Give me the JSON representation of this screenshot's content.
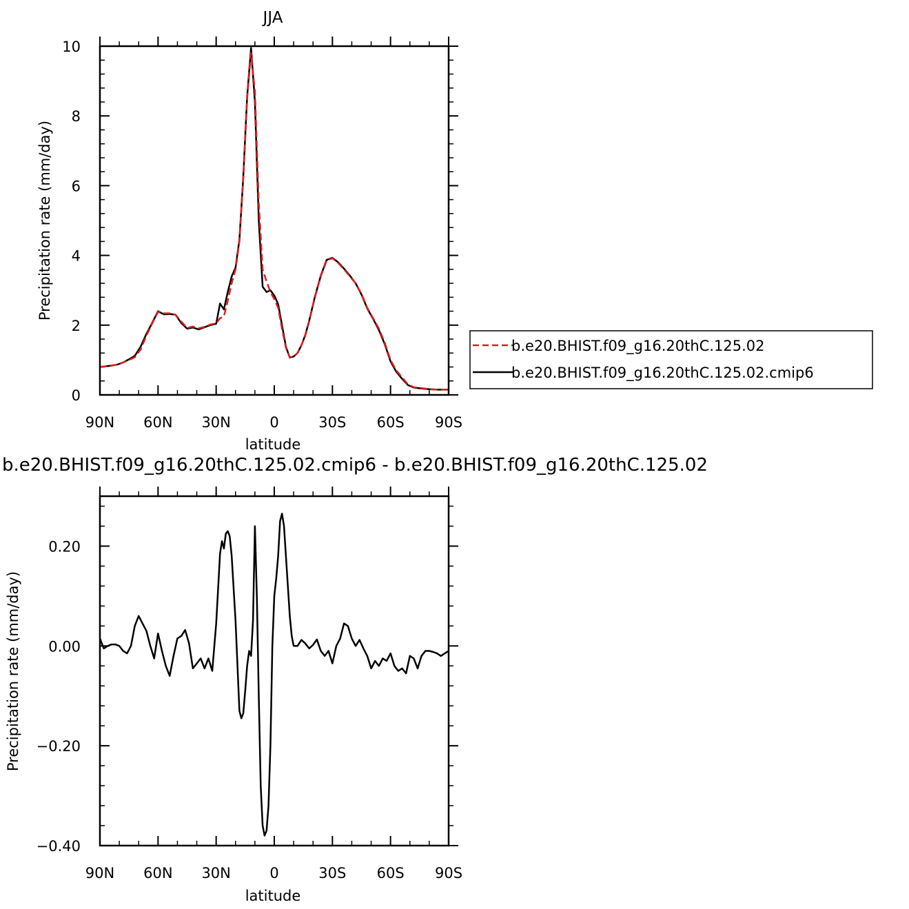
{
  "chart_data": [
    {
      "type": "line",
      "title": "JJA",
      "xlabel": "latitude",
      "ylabel": "Precipitation rate (mm/day)",
      "xlim": [
        90,
        -90
      ],
      "ylim": [
        0,
        10
      ],
      "xticks": [
        90,
        60,
        30,
        0,
        -30,
        -60,
        -90
      ],
      "xtick_labels": [
        "90N",
        "60N",
        "30N",
        "0",
        "30S",
        "60S",
        "90S"
      ],
      "yticks": [
        0,
        2,
        4,
        6,
        8,
        10
      ],
      "ytick_labels": [
        "0",
        "2",
        "4",
        "6",
        "8",
        "10"
      ],
      "legend_position": "right",
      "series": [
        {
          "name": "b.e20.BHIST.f09_g16.20thC.125.02",
          "color": "#e41a1c",
          "dash": "dashed",
          "x": [
            90,
            87,
            84,
            81,
            78,
            75,
            72,
            69,
            66,
            63,
            60,
            57,
            54,
            51,
            48,
            45,
            42,
            39,
            36,
            33,
            30,
            28,
            26,
            24,
            22,
            20,
            18,
            16,
            14,
            12,
            10,
            8,
            6,
            4,
            2,
            0,
            -2,
            -4,
            -6,
            -8,
            -10,
            -12,
            -14,
            -16,
            -18,
            -21,
            -24,
            -27,
            -30,
            -33,
            -36,
            -39,
            -42,
            -45,
            -48,
            -51,
            -54,
            -57,
            -60,
            -63,
            -66,
            -69,
            -72,
            -75,
            -78,
            -81,
            -84,
            -87,
            -90
          ],
          "y": [
            0.8,
            0.82,
            0.84,
            0.87,
            0.93,
            1.0,
            1.08,
            1.3,
            1.7,
            2.05,
            2.38,
            2.34,
            2.34,
            2.3,
            2.1,
            1.92,
            1.96,
            1.91,
            1.95,
            2.02,
            2.05,
            2.2,
            2.25,
            2.7,
            3.2,
            3.6,
            4.4,
            6.2,
            8.5,
            9.8,
            8.7,
            5.5,
            3.6,
            3.25,
            2.95,
            2.75,
            2.5,
            1.9,
            1.35,
            1.08,
            1.1,
            1.2,
            1.42,
            1.7,
            2.1,
            2.8,
            3.4,
            3.85,
            3.92,
            3.78,
            3.6,
            3.4,
            3.2,
            2.9,
            2.5,
            2.2,
            1.9,
            1.5,
            1.0,
            0.7,
            0.5,
            0.3,
            0.22,
            0.2,
            0.18,
            0.16,
            0.15,
            0.15,
            0.15
          ]
        },
        {
          "name": "b.e20.BHIST.f09_g16.20thC.125.02.cmip6",
          "color": "#000000",
          "dash": "solid",
          "x": [
            90,
            87,
            84,
            81,
            78,
            75,
            72,
            69,
            66,
            63,
            60,
            57,
            54,
            51,
            48,
            45,
            42,
            39,
            36,
            33,
            30,
            28,
            26,
            24,
            22,
            20,
            18,
            16,
            14,
            12,
            10,
            8,
            6,
            4,
            2,
            0,
            -2,
            -4,
            -6,
            -8,
            -10,
            -12,
            -14,
            -16,
            -18,
            -21,
            -24,
            -27,
            -30,
            -33,
            -36,
            -39,
            -42,
            -45,
            -48,
            -51,
            -54,
            -57,
            -60,
            -63,
            -66,
            -69,
            -72,
            -75,
            -78,
            -81,
            -84,
            -87,
            -90
          ],
          "y": [
            0.8,
            0.82,
            0.84,
            0.87,
            0.93,
            1.02,
            1.12,
            1.38,
            1.75,
            2.07,
            2.4,
            2.31,
            2.32,
            2.3,
            2.06,
            1.9,
            1.93,
            1.88,
            1.94,
            2.0,
            2.04,
            2.62,
            2.45,
            2.95,
            3.4,
            3.65,
            4.45,
            6.25,
            8.55,
            9.95,
            8.4,
            5.0,
            3.1,
            2.95,
            3.0,
            2.85,
            2.6,
            2.0,
            1.38,
            1.07,
            1.1,
            1.2,
            1.42,
            1.72,
            2.12,
            2.82,
            3.42,
            3.87,
            3.93,
            3.8,
            3.62,
            3.42,
            3.2,
            2.88,
            2.48,
            2.18,
            1.86,
            1.46,
            0.96,
            0.66,
            0.46,
            0.28,
            0.21,
            0.19,
            0.17,
            0.16,
            0.15,
            0.15,
            0.15
          ]
        }
      ]
    },
    {
      "type": "line",
      "title": "b.e20.BHIST.f09_g16.20thC.125.02.cmip6 - b.e20.BHIST.f09_g16.20thC.125.02",
      "xlabel": "latitude",
      "ylabel": "Precipitation rate (mm/day)",
      "xlim": [
        90,
        -90
      ],
      "ylim": [
        -0.4,
        0.3
      ],
      "xticks": [
        90,
        60,
        30,
        0,
        -30,
        -60,
        -90
      ],
      "xtick_labels": [
        "90N",
        "60N",
        "30N",
        "0",
        "30S",
        "60S",
        "90S"
      ],
      "yticks": [
        0.2,
        0,
        -0.2,
        -0.4
      ],
      "ytick_labels": [
        "0.20",
        "0.00",
        "−0.20",
        "−0.40"
      ],
      "series": [
        {
          "color": "#000000",
          "x": [
            90,
            88,
            86,
            84,
            82,
            80,
            78,
            76,
            74,
            72,
            70,
            68,
            66,
            64,
            62,
            60,
            58,
            56,
            54,
            52,
            50,
            48,
            46,
            44,
            42,
            40,
            38,
            36,
            34,
            32,
            30,
            28,
            27,
            26,
            25,
            24,
            23,
            22,
            20,
            18,
            17,
            16,
            15,
            14,
            13,
            12,
            11,
            10,
            9,
            8,
            7,
            6,
            5,
            4,
            3,
            2,
            1,
            0,
            -1,
            -2,
            -3,
            -4,
            -5,
            -6,
            -7,
            -8,
            -9,
            -10,
            -12,
            -14,
            -16,
            -18,
            -20,
            -22,
            -24,
            -26,
            -28,
            -30,
            -32,
            -34,
            -36,
            -38,
            -40,
            -42,
            -44,
            -46,
            -48,
            -50,
            -52,
            -54,
            -56,
            -58,
            -60,
            -62,
            -64,
            -66,
            -68,
            -70,
            -72,
            -74,
            -76,
            -78,
            -80,
            -82,
            -84,
            -86,
            -88,
            -90
          ],
          "y": [
            0.015,
            -0.005,
            0.0,
            0.003,
            0.003,
            0.0,
            -0.01,
            -0.015,
            0.0,
            0.04,
            0.06,
            0.045,
            0.03,
            0.0,
            -0.025,
            0.025,
            -0.01,
            -0.04,
            -0.06,
            -0.02,
            0.015,
            0.02,
            0.032,
            0.005,
            -0.045,
            -0.035,
            -0.025,
            -0.045,
            -0.025,
            -0.05,
            0.045,
            0.185,
            0.21,
            0.195,
            0.225,
            0.23,
            0.22,
            0.18,
            0.05,
            -0.13,
            -0.145,
            -0.135,
            -0.09,
            -0.04,
            -0.01,
            -0.02,
            0.05,
            0.24,
            0.1,
            -0.1,
            -0.28,
            -0.36,
            -0.38,
            -0.37,
            -0.32,
            -0.2,
            0.0,
            0.1,
            0.135,
            0.18,
            0.25,
            0.265,
            0.24,
            0.18,
            0.12,
            0.06,
            0.02,
            0.0,
            0.0,
            0.012,
            0.005,
            -0.005,
            0.002,
            0.013,
            -0.01,
            -0.02,
            -0.01,
            -0.035,
            0.0,
            0.015,
            0.045,
            0.04,
            0.015,
            0.0,
            0.012,
            -0.005,
            -0.02,
            -0.045,
            -0.03,
            -0.04,
            -0.025,
            -0.03,
            -0.015,
            -0.04,
            -0.05,
            -0.045,
            -0.055,
            -0.02,
            -0.025,
            -0.045,
            -0.02,
            -0.01,
            -0.01,
            -0.012,
            -0.015,
            -0.02,
            -0.015,
            -0.01
          ]
        }
      ]
    }
  ]
}
